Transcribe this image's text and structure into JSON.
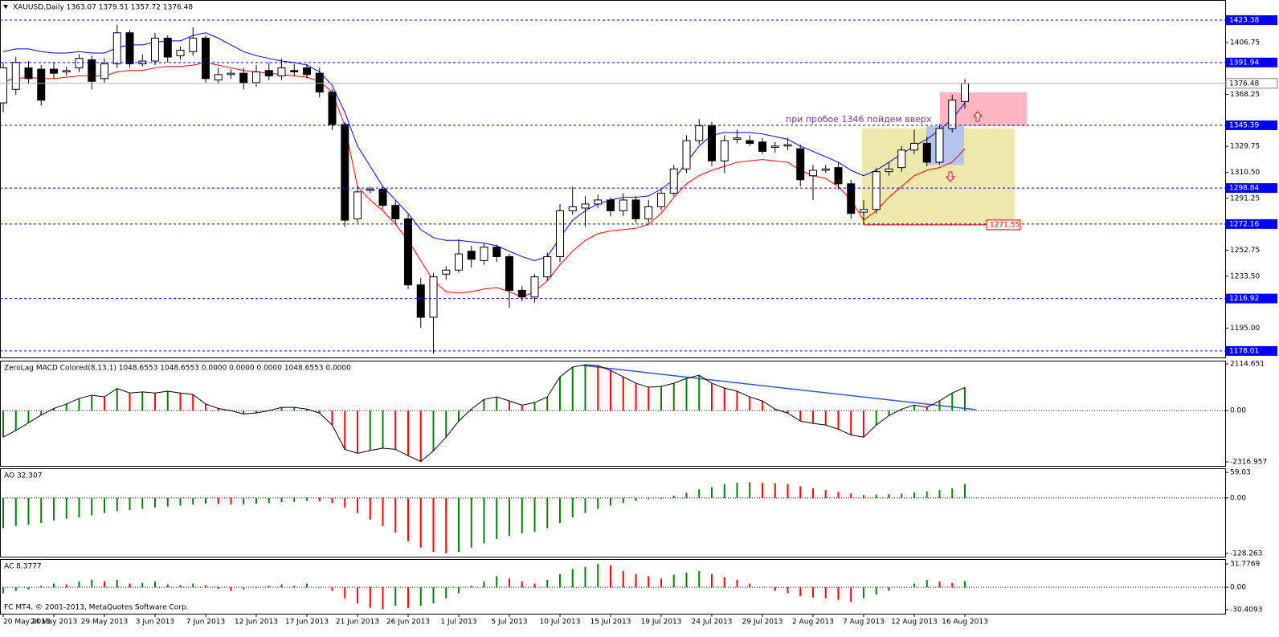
{
  "chart_data": [
    {
      "type": "candlestick",
      "title": "XAUUSD,Daily  1363.07 1379.51 1357.72 1376.48",
      "annotation": "при пробое 1346 пойдем вверх",
      "categories": [
        "20 May 2013",
        null,
        null,
        null,
        "24 May 2013",
        null,
        null,
        null,
        "29 May 2013",
        null,
        null,
        null,
        "3 Jun 2013",
        null,
        null,
        null,
        "7 Jun 2013",
        null,
        null,
        null,
        "12 Jun 2013",
        null,
        null,
        null,
        "17 Jun 2013",
        null,
        null,
        null,
        "21 Jun 2013",
        null,
        null,
        null,
        "26 Jun 2013",
        null,
        null,
        null,
        "1 Jul 2013",
        null,
        null,
        null,
        "5 Jul 2013",
        null,
        null,
        null,
        "10 Jul 2013",
        null,
        null,
        null,
        "15 Jul 2013",
        null,
        null,
        null,
        "19 Jul 2013",
        null,
        null,
        null,
        "24 Jul 2013",
        null,
        null,
        null,
        "29 Jul 2013",
        null,
        null,
        null,
        "2 Aug 2013",
        null,
        null,
        null,
        "7 Aug 2013",
        null,
        null,
        null,
        "12 Aug 2013",
        null,
        null,
        null,
        "16 Aug 2013"
      ],
      "open": [
        1362,
        1372,
        1388,
        1387,
        1387,
        1385,
        1388,
        1394,
        1380,
        1391,
        1414,
        1391,
        1393,
        1410,
        1397,
        1400,
        1410,
        1379,
        1383,
        1384,
        1377,
        1386,
        1382,
        1386,
        1388,
        1384,
        1370,
        1346,
        1276,
        1297,
        1298,
        1286,
        1276,
        1227,
        1203,
        1235,
        1238,
        1252,
        1245,
        1255,
        1248,
        1223,
        1218,
        1233,
        1248,
        1282,
        1284,
        1287,
        1290,
        1282,
        1290,
        1276,
        1285,
        1295,
        1313,
        1334,
        1345,
        1319,
        1335,
        1334,
        1333,
        1329,
        1330,
        1328,
        1308,
        1312,
        1314,
        1302,
        1281,
        1283,
        1311,
        1314,
        1327,
        1332,
        1318,
        1343,
        1363.07
      ],
      "high": [
        1392,
        1396,
        1393,
        1390,
        1392,
        1389,
        1398,
        1397,
        1395,
        1420,
        1416,
        1398,
        1414,
        1412,
        1404,
        1418,
        1412,
        1388,
        1387,
        1388,
        1390,
        1392,
        1395,
        1391,
        1391,
        1388,
        1372,
        1348,
        1300,
        1300,
        1300,
        1290,
        1280,
        1232,
        1236,
        1241,
        1261,
        1256,
        1258,
        1257,
        1250,
        1226,
        1235,
        1251,
        1287,
        1300,
        1293,
        1294,
        1292,
        1295,
        1293,
        1290,
        1298,
        1316,
        1338,
        1350,
        1348,
        1338,
        1342,
        1338,
        1336,
        1333,
        1336,
        1331,
        1316,
        1316,
        1318,
        1305,
        1290,
        1314,
        1318,
        1330,
        1342,
        1337,
        1346,
        1368,
        1379.51
      ],
      "low": [
        1355,
        1368,
        1376,
        1360,
        1380,
        1382,
        1385,
        1372,
        1377,
        1388,
        1388,
        1389,
        1390,
        1392,
        1394,
        1397,
        1377,
        1376,
        1380,
        1372,
        1374,
        1379,
        1379,
        1382,
        1380,
        1366,
        1342,
        1270,
        1273,
        1295,
        1283,
        1272,
        1224,
        1195,
        1176,
        1231,
        1236,
        1240,
        1242,
        1244,
        1210,
        1215,
        1214,
        1230,
        1244,
        1279,
        1270,
        1284,
        1278,
        1278,
        1273,
        1273,
        1282,
        1293,
        1310,
        1331,
        1315,
        1310,
        1332,
        1330,
        1324,
        1325,
        1327,
        1300,
        1290,
        1310,
        1298,
        1276,
        1272,
        1280,
        1308,
        1311,
        1324,
        1315,
        1316,
        1340,
        1357.72
      ],
      "close": [
        1388,
        1392,
        1380,
        1364,
        1384,
        1386,
        1395,
        1378,
        1391,
        1414,
        1391,
        1393,
        1410,
        1396,
        1401,
        1410,
        1380,
        1383,
        1384,
        1377,
        1385,
        1382,
        1388,
        1385,
        1383,
        1370,
        1346,
        1275,
        1296,
        1298,
        1286,
        1276,
        1227,
        1203,
        1233,
        1238,
        1250,
        1246,
        1255,
        1248,
        1223,
        1218,
        1233,
        1248,
        1282,
        1285,
        1287,
        1290,
        1282,
        1290,
        1276,
        1285,
        1295,
        1313,
        1334,
        1345,
        1319,
        1334,
        1336,
        1332,
        1326,
        1330,
        1331,
        1305,
        1312,
        1313,
        1302,
        1280,
        1283,
        1311,
        1313,
        1327,
        1332,
        1318,
        1343,
        1364,
        1376.48
      ],
      "overlays": [
        {
          "color": "#0000ff",
          "values": [
            1400,
            1402,
            1402,
            1400,
            1399,
            1399,
            1400,
            1399,
            1399,
            1403,
            1405,
            1405,
            1407,
            1408,
            1408,
            1412,
            1414,
            1410,
            1405,
            1400,
            1397,
            1395,
            1393,
            1392,
            1390,
            1385,
            1375,
            1355,
            1330,
            1315,
            1300,
            1290,
            1280,
            1268,
            1262,
            1260,
            1260,
            1259,
            1258,
            1256,
            1252,
            1248,
            1245,
            1248,
            1262,
            1275,
            1282,
            1287,
            1290,
            1292,
            1292,
            1293,
            1298,
            1305,
            1318,
            1330,
            1338,
            1340,
            1340,
            1340,
            1339,
            1337,
            1335,
            1330,
            1326,
            1322,
            1318,
            1312,
            1308,
            1312,
            1318,
            1324,
            1330,
            1335,
            1342,
            1350,
            1362
          ]
        },
        {
          "color": "#ff0000",
          "values": [
            1378,
            1380,
            1381,
            1380,
            1380,
            1381,
            1382,
            1382,
            1382,
            1385,
            1386,
            1386,
            1388,
            1389,
            1389,
            1390,
            1392,
            1390,
            1388,
            1386,
            1385,
            1384,
            1383,
            1382,
            1381,
            1378,
            1370,
            1345,
            1300,
            1290,
            1282,
            1272,
            1260,
            1245,
            1230,
            1222,
            1221,
            1222,
            1224,
            1225,
            1222,
            1218,
            1222,
            1230,
            1242,
            1252,
            1260,
            1265,
            1267,
            1268,
            1269,
            1272,
            1280,
            1292,
            1302,
            1308,
            1312,
            1315,
            1318,
            1319,
            1320,
            1319,
            1318,
            1312,
            1308,
            1306,
            1300,
            1290,
            1275,
            1282,
            1292,
            1300,
            1308,
            1312,
            1314,
            1318,
            1328
          ]
        }
      ],
      "up_color": "#ffffff",
      "down_color": "#000000",
      "levels": [
        1423.38,
        1391.94,
        1345.39,
        1298.84,
        1272.16,
        1216.92,
        1178.01
      ],
      "level_color": "#0000ff",
      "last_price": 1376.48,
      "price_label": 1271.55,
      "ylim": [
        1173.2,
        1438.3
      ],
      "yticks": [
        1406.75,
        1368.25,
        1329.75,
        {
          "value": 1310.5,
          "label": "1310.50"
        },
        1291.25,
        1252.75,
        {
          "value": 1233.5,
          "label": "1233.50"
        },
        {
          "value": 1195,
          "label": "1195.00"
        }
      ]
    },
    {
      "type": "bar",
      "title": "ZeroLag MACD Colored(8,13,1) 1048.6553 1048.6553 0.0000 0.0000 0.0000 1048.6553 0.0000",
      "values": [
        -1200,
        -900,
        -550,
        -200,
        100,
        300,
        550,
        700,
        620,
        1000,
        800,
        850,
        800,
        880,
        800,
        730,
        300,
        100,
        0,
        -150,
        -100,
        0,
        150,
        150,
        70,
        -110,
        -650,
        -1750,
        -1930,
        -1800,
        -1700,
        -1750,
        -2040,
        -2300,
        -1820,
        -1200,
        -470,
        70,
        510,
        620,
        440,
        250,
        365,
        620,
        1530,
        1970,
        2080,
        2040,
        1820,
        1530,
        1240,
        1060,
        1100,
        1240,
        1460,
        1600,
        1240,
        1020,
        880,
        620,
        440,
        70,
        -110,
        -470,
        -580,
        -650,
        -840,
        -1100,
        -1200,
        -650,
        -220,
        70,
        250,
        150,
        440,
        800,
        1048.6553
      ],
      "up_color": "#008000",
      "down_color": "#ff0000",
      "signal_color": "#000000",
      "ylim": [
        -2500,
        2261
      ],
      "yticks": [
        2114.651,
        {
          "value": 0,
          "label": "0.00"
        },
        -2316.957
      ]
    },
    {
      "type": "bar",
      "title": "AO 32.307",
      "values": [
        -70,
        -65,
        -62,
        -58,
        -52,
        -48,
        -45,
        -40,
        -35,
        -30,
        -28,
        -25,
        -22,
        -20,
        -18,
        -15,
        -13,
        -14,
        -15,
        -15,
        -13,
        -12,
        -10,
        -9,
        -7,
        -8,
        -12,
        -22,
        -35,
        -50,
        -65,
        -80,
        -100,
        -115,
        -125,
        -128,
        -125,
        -115,
        -105,
        -95,
        -88,
        -82,
        -78,
        -70,
        -58,
        -45,
        -35,
        -25,
        -18,
        -12,
        -7,
        -3,
        -2,
        5,
        12,
        20,
        25,
        32,
        35,
        36,
        35,
        34,
        32,
        27,
        22,
        18,
        14,
        10,
        7,
        8,
        9,
        10,
        12,
        15,
        18,
        22,
        32.307
      ],
      "up_color": "#008000",
      "down_color": "#ff0000",
      "ylim": [
        -136,
        68.6
      ],
      "yticks": [
        59.03,
        {
          "value": 0,
          "label": "0.00"
        },
        -128.263
      ]
    },
    {
      "type": "bar",
      "title": "AC 8.3777",
      "values": [
        -8,
        -5,
        -3,
        2,
        5,
        4,
        8,
        10,
        8,
        10,
        5,
        6,
        8,
        4,
        3,
        5,
        3,
        -2,
        -5,
        -3,
        -1,
        2,
        4,
        2,
        5,
        0,
        -5,
        -15,
        -22,
        -28,
        -30,
        -25,
        -28,
        -25,
        -22,
        -15,
        -8,
        2,
        8,
        15,
        12,
        8,
        5,
        10,
        18,
        25,
        28,
        32,
        30,
        22,
        18,
        15,
        12,
        17,
        20,
        22,
        18,
        14,
        10,
        5,
        0,
        -5,
        -8,
        -12,
        -14,
        -15,
        -17,
        -20,
        -15,
        -10,
        -5,
        0,
        5,
        10,
        8,
        6,
        8.3777
      ],
      "up_color": "#008000",
      "down_color": "#ff0000",
      "ylim": [
        -35.96,
        38.44
      ],
      "yticks": [
        31.7769,
        {
          "value": 0,
          "label": "0.00"
        },
        -30.4093
      ]
    }
  ],
  "footer": "FC MT4, © 2001-2013, MetaQuotes Software Corp."
}
